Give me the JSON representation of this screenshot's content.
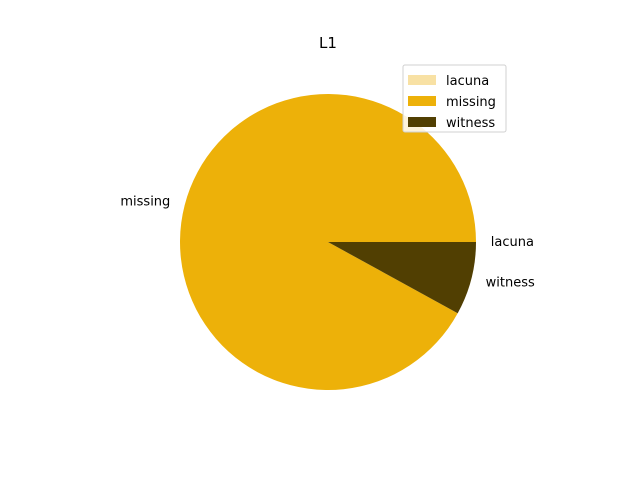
{
  "chart_data": {
    "type": "pie",
    "title": "L1",
    "categories": [
      "lacuna",
      "missing",
      "witness"
    ],
    "values": [
      0.0,
      92.0,
      8.0
    ],
    "colors": [
      "#f8e1a4",
      "#edb109",
      "#513f02"
    ],
    "start_angle_deg": 0,
    "direction": "counterclockwise",
    "legend": {
      "placement": "upper-right",
      "entries": [
        "lacuna",
        "missing",
        "witness"
      ]
    }
  }
}
